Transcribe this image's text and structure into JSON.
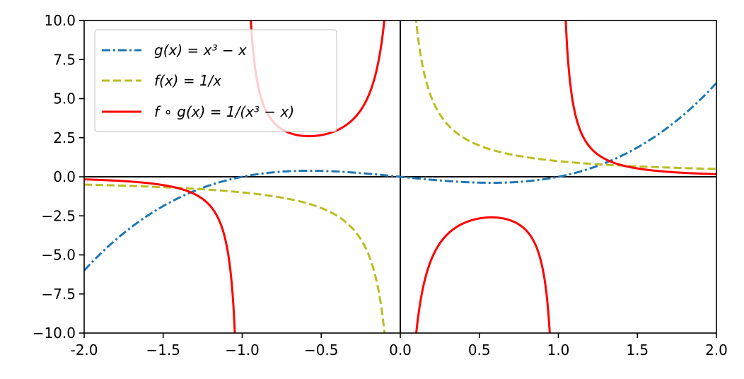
{
  "chart_data": {
    "type": "line",
    "title": "",
    "xlabel": "",
    "ylabel": "",
    "xlim": [
      -2.0,
      2.0
    ],
    "ylim": [
      -10.0,
      10.0
    ],
    "x_ticks": [
      -2.0,
      -1.5,
      -1.0,
      -0.5,
      0.0,
      0.5,
      1.0,
      1.5,
      2.0
    ],
    "x_tick_labels": [
      "-2.0",
      "−1.5",
      "−1.0",
      "−0.5",
      "0.0",
      "0.5",
      "1.0",
      "1.5",
      "2.0"
    ],
    "y_ticks": [
      10.0,
      7.5,
      5.0,
      2.5,
      0.0,
      -2.5,
      -5.0,
      -7.5,
      -10.0
    ],
    "y_tick_labels": [
      "10.0",
      "7.5",
      "5.0",
      "2.5",
      "0.0",
      "−2.5",
      "−5.0",
      "−7.5",
      "−10.0"
    ],
    "grid": false,
    "legend_position": "top-left",
    "reference_lines": {
      "horizontal_y": 0,
      "vertical_x": 0,
      "color": "#000000"
    },
    "series": [
      {
        "name": "g(x) = x³ − x",
        "color": "#1f77b4",
        "style": "dashdot",
        "x": [
          -2.0,
          -1.75,
          -1.5,
          -1.25,
          -1.0,
          -0.75,
          -0.5,
          -0.25,
          0.0,
          0.25,
          0.5,
          0.75,
          1.0,
          1.25,
          1.5,
          1.75,
          2.0
        ],
        "y": [
          -6.0,
          -3.61,
          -1.88,
          -0.7,
          0.0,
          0.33,
          0.38,
          0.23,
          0.0,
          -0.23,
          -0.38,
          -0.33,
          0.0,
          0.7,
          1.88,
          3.61,
          6.0
        ]
      },
      {
        "name": "f(x) = 1/x",
        "color": "#bcbd22",
        "style": "dashed",
        "x": [
          -2.0,
          -1.5,
          -1.0,
          -0.75,
          -0.5,
          -0.3,
          -0.2,
          -0.15,
          -0.1,
          0.1,
          0.15,
          0.2,
          0.3,
          0.5,
          0.75,
          1.0,
          1.5,
          2.0
        ],
        "y": [
          -0.5,
          -0.67,
          -1.0,
          -1.33,
          -2.0,
          -3.33,
          -5.0,
          -6.67,
          -10.0,
          10.0,
          6.67,
          5.0,
          3.33,
          2.0,
          1.33,
          1.0,
          0.67,
          0.5
        ]
      },
      {
        "name": "f ∘ g(x) = 1/(x³ − x)",
        "color": "#ff0000",
        "style": "solid",
        "x": [
          -2.0,
          -1.5,
          -1.25,
          -1.1,
          -1.05,
          -0.95,
          -0.9,
          -0.75,
          -0.577,
          -0.25,
          -0.1,
          0.1,
          0.25,
          0.577,
          0.75,
          0.9,
          0.95,
          1.05,
          1.1,
          1.25,
          1.5,
          2.0
        ],
        "y": [
          -0.17,
          -0.53,
          -1.42,
          -4.33,
          -9.3,
          9.7,
          5.26,
          3.05,
          2.6,
          4.27,
          10.1,
          -10.1,
          -4.27,
          -2.6,
          -3.05,
          -5.26,
          -9.7,
          9.3,
          4.33,
          1.42,
          0.53,
          0.17
        ]
      }
    ]
  }
}
